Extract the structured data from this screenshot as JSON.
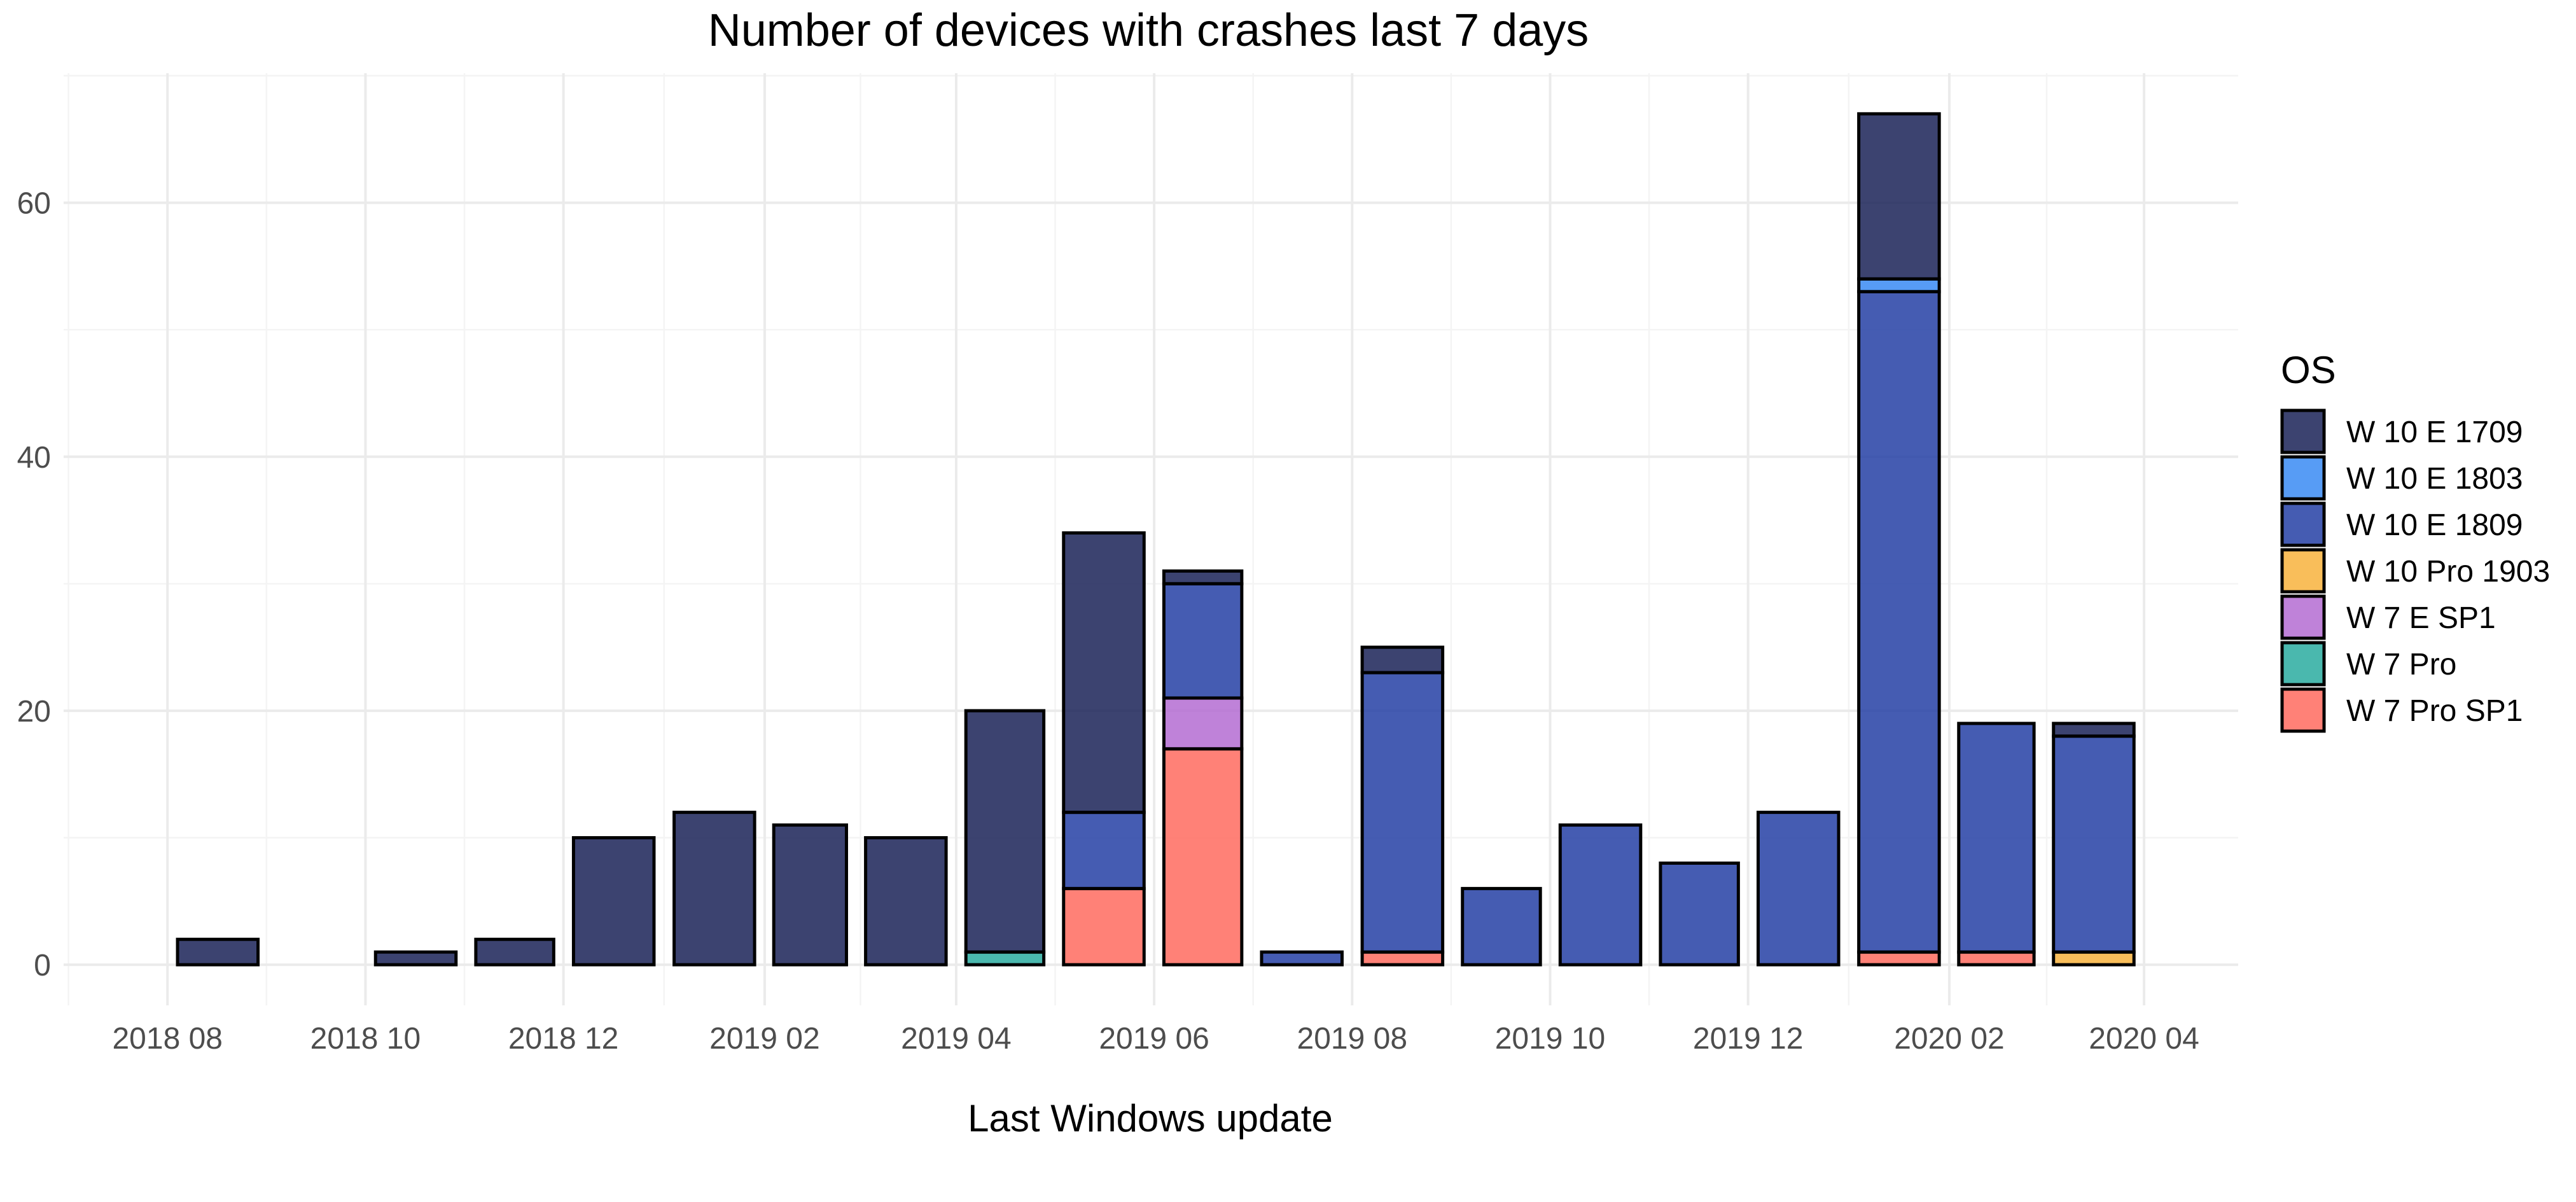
{
  "chart_data": {
    "type": "bar",
    "stacked": true,
    "title": "Number of devices with crashes last 7 days",
    "xlabel": "Last Windows update",
    "ylabel": "",
    "ylim": [
      -3.2,
      70.2
    ],
    "xlim": [
      "2018-06-30",
      "2020-04-30"
    ],
    "y_ticks": [
      0,
      20,
      40,
      60
    ],
    "x_ticks": [
      {
        "date": "2018-08-01",
        "label": "2018 08"
      },
      {
        "date": "2018-10-01",
        "label": "2018 10"
      },
      {
        "date": "2018-12-01",
        "label": "2018 12"
      },
      {
        "date": "2019-02-01",
        "label": "2019 02"
      },
      {
        "date": "2019-04-01",
        "label": "2019 04"
      },
      {
        "date": "2019-06-01",
        "label": "2019 06"
      },
      {
        "date": "2019-08-01",
        "label": "2019 08"
      },
      {
        "date": "2019-10-01",
        "label": "2019 10"
      },
      {
        "date": "2019-12-01",
        "label": "2019 12"
      },
      {
        "date": "2020-02-01",
        "label": "2020 02"
      },
      {
        "date": "2020-04-01",
        "label": "2020 04"
      }
    ],
    "grid": true,
    "legend_title": "OS",
    "legend_position": "right",
    "categories": [
      "2018-08",
      "2018-10",
      "2018-11",
      "2018-12",
      "2019-01",
      "2019-02",
      "2019-03",
      "2019-04",
      "2019-05",
      "2019-06",
      "2019-07",
      "2019-08",
      "2019-09",
      "2019-10",
      "2019-11",
      "2019-12",
      "2020-01",
      "2020-02",
      "2020-03"
    ],
    "series": [
      {
        "name": "W 7 Pro SP1",
        "color": "#FF6B5F",
        "values": [
          0,
          0,
          0,
          0,
          0,
          0,
          0,
          0,
          6,
          17,
          0,
          1,
          0,
          0,
          0,
          0,
          1,
          1,
          0
        ]
      },
      {
        "name": "W 7 Pro",
        "color": "#2AABA0",
        "values": [
          0,
          0,
          0,
          0,
          0,
          0,
          0,
          1,
          0,
          0,
          0,
          0,
          0,
          0,
          0,
          0,
          0,
          0,
          0
        ]
      },
      {
        "name": "W 7 E SP1",
        "color": "#B46CD2",
        "values": [
          0,
          0,
          0,
          0,
          0,
          0,
          0,
          0,
          0,
          4,
          0,
          0,
          0,
          0,
          0,
          0,
          0,
          0,
          0
        ]
      },
      {
        "name": "W 10 Pro 1903",
        "color": "#F8B33D",
        "values": [
          0,
          0,
          0,
          0,
          0,
          0,
          0,
          0,
          0,
          0,
          0,
          0,
          0,
          0,
          0,
          0,
          0,
          0,
          1
        ]
      },
      {
        "name": "W 10 E 1809",
        "color": "#2440A4",
        "values": [
          0,
          0,
          0,
          0,
          0,
          0,
          0,
          0,
          6,
          9,
          1,
          22,
          6,
          11,
          8,
          12,
          52,
          18,
          17
        ]
      },
      {
        "name": "W 10 E 1803",
        "color": "#3A8BF3",
        "values": [
          0,
          0,
          0,
          0,
          0,
          0,
          0,
          0,
          0,
          0,
          0,
          0,
          0,
          0,
          0,
          0,
          1,
          0,
          0
        ]
      },
      {
        "name": "W 10 E 1709",
        "color": "#1A2257",
        "values": [
          2,
          1,
          2,
          10,
          12,
          11,
          10,
          19,
          22,
          1,
          0,
          2,
          0,
          0,
          0,
          0,
          13,
          0,
          1
        ]
      }
    ],
    "legend_order": [
      "W 10 E 1709",
      "W 10 E 1803",
      "W 10 E 1809",
      "W 10 Pro 1903",
      "W 7 E SP1",
      "W 7 Pro",
      "W 7 Pro SP1"
    ]
  }
}
